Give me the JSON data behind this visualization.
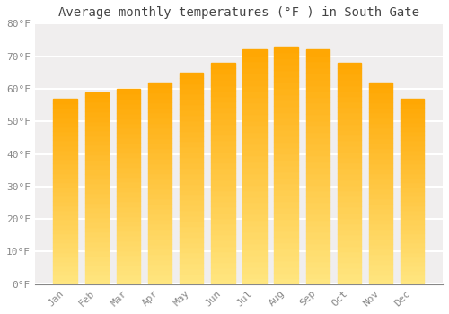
{
  "title": "Average monthly temperatures (°F ) in South Gate",
  "months": [
    "Jan",
    "Feb",
    "Mar",
    "Apr",
    "May",
    "Jun",
    "Jul",
    "Aug",
    "Sep",
    "Oct",
    "Nov",
    "Dec"
  ],
  "values": [
    57,
    59,
    60,
    62,
    65,
    68,
    72,
    73,
    72,
    68,
    62,
    57
  ],
  "bar_color_top": "#FFA500",
  "bar_color_bottom": "#FFD580",
  "bar_edge_color": "#E8A000",
  "ylim": [
    0,
    80
  ],
  "yticks": [
    0,
    10,
    20,
    30,
    40,
    50,
    60,
    70,
    80
  ],
  "ytick_labels": [
    "0°F",
    "10°F",
    "20°F",
    "30°F",
    "40°F",
    "50°F",
    "60°F",
    "70°F",
    "80°F"
  ],
  "background_color": "#ffffff",
  "plot_bg_color": "#f0eeee",
  "grid_color": "#ffffff",
  "title_fontsize": 10,
  "tick_fontsize": 8,
  "bar_width": 0.75
}
